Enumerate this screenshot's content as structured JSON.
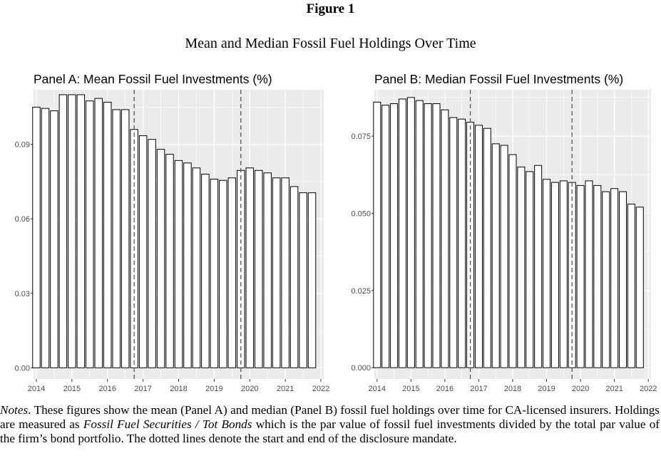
{
  "figure_label": "Figure 1",
  "figure_title": "Mean and Median Fossil Fuel Holdings Over Time",
  "notes": {
    "lead": "Notes",
    "text1": ". These figures show the mean (Panel A) and median (Panel B) fossil fuel holdings over time for CA-licensed insurers. Holdings are measured as ",
    "measure": "Fossil Fuel Securities / Tot Bonds",
    "text2": " which is the par value of fossil fuel investments divided by the total par value of the firm’s bond portfolio. The dotted lines denote the start and end of the disclosure mandate."
  },
  "colors": {
    "panel_background": "#ebebeb",
    "gridline": "#ffffff",
    "bar_fill": "#ffffff",
    "bar_outline": "#000000",
    "vline": "#555555",
    "axis_text": "#4d4d4d"
  },
  "chart_data": [
    {
      "type": "bar",
      "title": "Panel A: Mean Fossil Fuel Investments (%)",
      "xlabel": "",
      "ylabel": "",
      "xlim": [
        2013.92,
        2022.08
      ],
      "ylim": [
        -0.0045,
        0.112
      ],
      "x_ticks": [
        2014,
        2015,
        2016,
        2017,
        2018,
        2019,
        2020,
        2021,
        2022
      ],
      "y_ticks": [
        0.0,
        0.03,
        0.06,
        0.09
      ],
      "y_tick_labels": [
        "0.00",
        "0.03",
        "0.06",
        "0.09"
      ],
      "grid": true,
      "bar_width_years": 0.21,
      "x": [
        2014.0,
        2014.25,
        2014.5,
        2014.75,
        2015.0,
        2015.25,
        2015.5,
        2015.75,
        2016.0,
        2016.25,
        2016.5,
        2016.75,
        2017.0,
        2017.25,
        2017.5,
        2017.75,
        2018.0,
        2018.25,
        2018.5,
        2018.75,
        2019.0,
        2019.25,
        2019.5,
        2019.75,
        2020.0,
        2020.25,
        2020.5,
        2020.75,
        2021.0,
        2021.25,
        2021.5,
        2021.75
      ],
      "values": [
        0.105,
        0.1045,
        0.1035,
        0.11,
        0.11,
        0.11,
        0.1075,
        0.1085,
        0.107,
        0.104,
        0.104,
        0.096,
        0.0935,
        0.092,
        0.088,
        0.086,
        0.0835,
        0.0825,
        0.0805,
        0.078,
        0.076,
        0.0755,
        0.0765,
        0.0795,
        0.0805,
        0.0795,
        0.0785,
        0.0765,
        0.0765,
        0.073,
        0.0705,
        0.0705
      ],
      "vlines": [
        2016.75,
        2019.75
      ],
      "vline_style": "dashed"
    },
    {
      "type": "bar",
      "title": "Panel B: Median Fossil Fuel Investments (%)",
      "xlabel": "",
      "ylabel": "",
      "xlim": [
        2013.92,
        2022.08
      ],
      "ylim": [
        -0.00365,
        0.09
      ],
      "x_ticks": [
        2014,
        2015,
        2016,
        2017,
        2018,
        2019,
        2020,
        2021,
        2022
      ],
      "y_ticks": [
        0.0,
        0.025,
        0.05,
        0.075
      ],
      "y_tick_labels": [
        "0.000",
        "0.025",
        "0.050",
        "0.075"
      ],
      "grid": true,
      "bar_width_years": 0.21,
      "x": [
        2014.0,
        2014.25,
        2014.5,
        2014.75,
        2015.0,
        2015.25,
        2015.5,
        2015.75,
        2016.0,
        2016.25,
        2016.5,
        2016.75,
        2017.0,
        2017.25,
        2017.5,
        2017.75,
        2018.0,
        2018.25,
        2018.5,
        2018.75,
        2019.0,
        2019.25,
        2019.5,
        2019.75,
        2020.0,
        2020.25,
        2020.5,
        2020.75,
        2021.0,
        2021.25,
        2021.5,
        2021.75
      ],
      "values": [
        0.086,
        0.085,
        0.0855,
        0.087,
        0.0875,
        0.0865,
        0.0855,
        0.0855,
        0.0835,
        0.081,
        0.0805,
        0.0795,
        0.0785,
        0.0775,
        0.0725,
        0.072,
        0.069,
        0.065,
        0.0635,
        0.0655,
        0.061,
        0.06,
        0.0605,
        0.06,
        0.059,
        0.0605,
        0.059,
        0.057,
        0.058,
        0.057,
        0.053,
        0.052
      ],
      "vlines": [
        2016.75,
        2019.75
      ],
      "vline_style": "dashed"
    }
  ]
}
